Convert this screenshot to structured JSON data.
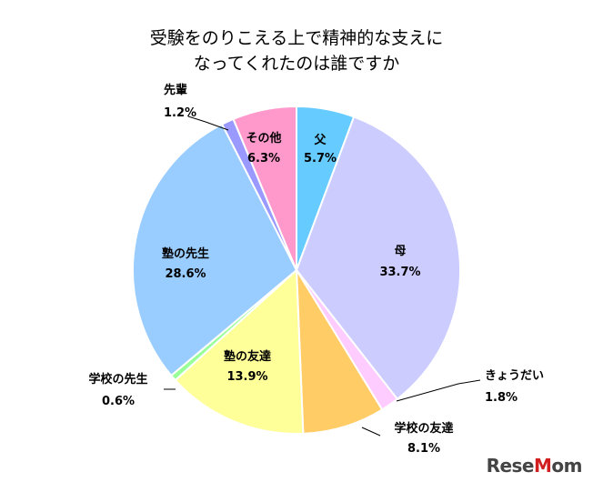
{
  "chart_data": {
    "type": "pie",
    "title": [
      "受験をのりこえる上で精神的な支えに",
      "なってくれたのは誰ですか"
    ],
    "slices": [
      {
        "label": "父",
        "value": 5.7,
        "value_label": "5.7%",
        "color": "#66ccff"
      },
      {
        "label": "母",
        "value": 33.7,
        "value_label": "33.7%",
        "color": "#ccccff"
      },
      {
        "label": "きょうだい",
        "value": 1.8,
        "value_label": "1.8%",
        "color": "#ffccff"
      },
      {
        "label": "学校の友達",
        "value": 8.1,
        "value_label": "8.1%",
        "color": "#ffcc66"
      },
      {
        "label": "塾の友達",
        "value": 13.9,
        "value_label": "13.9%",
        "color": "#ffff99"
      },
      {
        "label": "学校の先生",
        "value": 0.6,
        "value_label": "0.6%",
        "color": "#99ff99"
      },
      {
        "label": "塾の先生",
        "value": 28.6,
        "value_label": "28.6%",
        "color": "#99ccff"
      },
      {
        "label": "先輩",
        "value": 1.2,
        "value_label": "1.2%",
        "color": "#9999ff"
      },
      {
        "label": "その他",
        "value": 6.3,
        "value_label": "6.3%",
        "color": "#ff99cc"
      }
    ]
  },
  "watermark": {
    "text_a": "Rese",
    "text_b": "M",
    "text_c": "om"
  }
}
